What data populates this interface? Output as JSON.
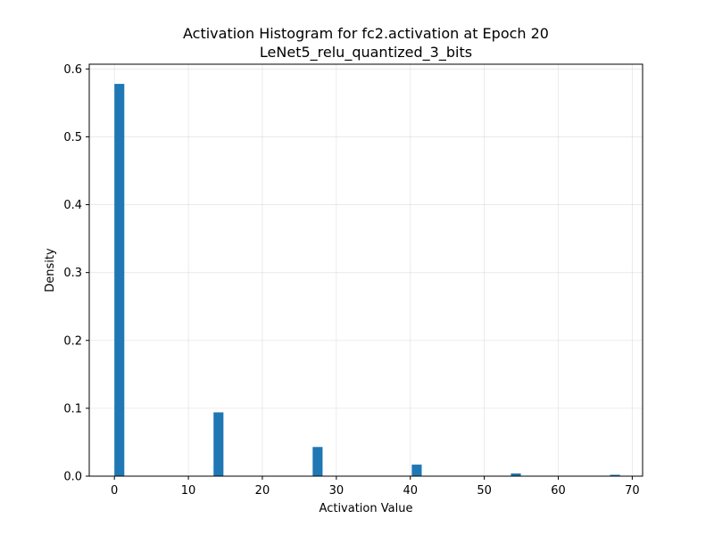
{
  "chart_data": {
    "type": "bar",
    "title": "Activation Histogram for fc2.activation at Epoch 20",
    "subtitle": "LeNet5_relu_quantized_3_bits",
    "xlabel": "Activation Value",
    "ylabel": "Density",
    "xlim": [
      -3.4,
      71.4
    ],
    "ylim": [
      0,
      0.607
    ],
    "grid": true,
    "bin_width": 1.34,
    "x_ticks": [
      0,
      10,
      20,
      30,
      40,
      50,
      60,
      70
    ],
    "x_tick_labels": [
      "0",
      "10",
      "20",
      "30",
      "40",
      "50",
      "60",
      "70"
    ],
    "y_ticks": [
      0.0,
      0.1,
      0.2,
      0.3,
      0.4,
      0.5,
      0.6
    ],
    "y_tick_labels": [
      "0.0",
      "0.1",
      "0.2",
      "0.3",
      "0.4",
      "0.5",
      "0.6"
    ],
    "bars": [
      {
        "x": 0.0,
        "value": 0.578
      },
      {
        "x": 13.4,
        "value": 0.094
      },
      {
        "x": 26.8,
        "value": 0.043
      },
      {
        "x": 40.2,
        "value": 0.017
      },
      {
        "x": 53.6,
        "value": 0.004
      },
      {
        "x": 67.0,
        "value": 0.002
      }
    ],
    "bar_color": "#1f77b4"
  }
}
